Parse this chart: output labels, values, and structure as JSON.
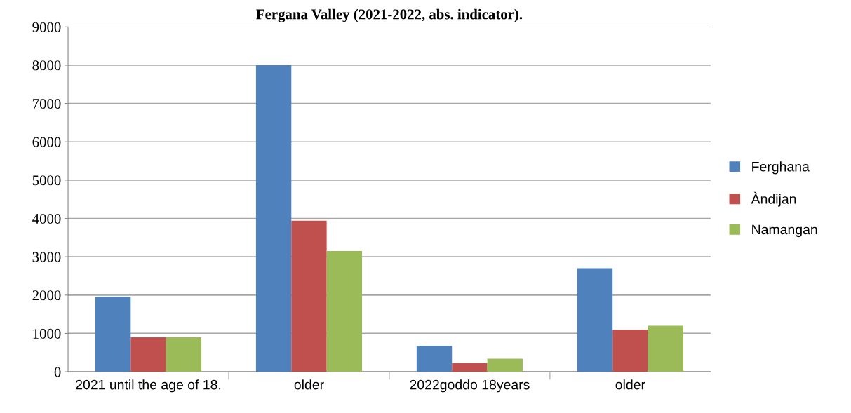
{
  "chart_data": {
    "type": "bar",
    "title": "Fergana Valley (2021-2022, abs. indicator).",
    "categories": [
      "2021 until the age of 18.",
      "older",
      "2022goddo 18years",
      "older"
    ],
    "series": [
      {
        "name": "Ferghana",
        "color": "#4f81bd",
        "values": [
          1960,
          8000,
          680,
          2700
        ]
      },
      {
        "name": "Àndijan",
        "color": "#c0504d",
        "values": [
          900,
          3940,
          225,
          1100
        ]
      },
      {
        "name": "Namangan",
        "color": "#9bbb59",
        "values": [
          900,
          3150,
          340,
          1200
        ]
      }
    ],
    "ylim": [
      0,
      9000
    ],
    "yticks": [
      0,
      1000,
      2000,
      3000,
      4000,
      5000,
      6000,
      7000,
      8000,
      9000
    ],
    "grid": "y",
    "legend": "right"
  }
}
